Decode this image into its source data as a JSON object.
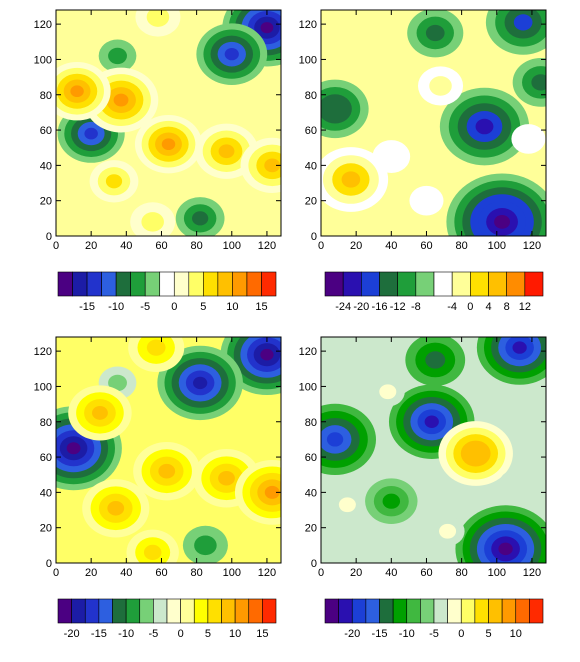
{
  "chart_data": [
    {
      "type": "heatmap",
      "title": "",
      "xlabel": "",
      "ylabel": "",
      "xlim": [
        0,
        128
      ],
      "ylim": [
        0,
        128
      ],
      "xticks": [
        "0",
        "20",
        "40",
        "60",
        "80",
        "100",
        "120"
      ],
      "yticks": [
        "0",
        "20",
        "40",
        "60",
        "80",
        "100",
        "120"
      ],
      "background": "#ffff99",
      "blobs": [
        {
          "x": 120,
          "y": 118,
          "level": -18
        },
        {
          "x": 100,
          "y": 103,
          "level": -13
        },
        {
          "x": 20,
          "y": 58,
          "level": -12
        },
        {
          "x": 82,
          "y": 10,
          "level": -7
        },
        {
          "x": 35,
          "y": 102,
          "level": -4
        },
        {
          "x": 37,
          "y": 77,
          "level": 14
        },
        {
          "x": 12,
          "y": 82,
          "level": 12
        },
        {
          "x": 64,
          "y": 52,
          "level": 12
        },
        {
          "x": 97,
          "y": 48,
          "level": 11
        },
        {
          "x": 123,
          "y": 40,
          "level": 11
        },
        {
          "x": 33,
          "y": 31,
          "level": 7
        },
        {
          "x": 58,
          "y": 124,
          "level": 6
        },
        {
          "x": 55,
          "y": 8,
          "level": 6
        }
      ],
      "colorbar": {
        "labels": [
          "-15",
          "-10",
          "-5",
          "0",
          "5",
          "10",
          "15"
        ],
        "colors": [
          "#4b0082",
          "#1c1ca6",
          "#2233cc",
          "#2d5fe0",
          "#1e6e3c",
          "#1f9e3a",
          "#77d077",
          "#ffffff",
          "#ffffcc",
          "#ffff66",
          "#ffe000",
          "#ffc000",
          "#ff9a00",
          "#ff6a00",
          "#ff2a00"
        ]
      }
    },
    {
      "type": "heatmap",
      "title": "",
      "xlabel": "",
      "ylabel": "",
      "xlim": [
        0,
        128
      ],
      "ylim": [
        0,
        128
      ],
      "xticks": [
        "0",
        "20",
        "40",
        "60",
        "80",
        "100",
        "120"
      ],
      "yticks": [
        "0",
        "20",
        "40",
        "60",
        "80",
        "100",
        "120"
      ],
      "background": "#ffff99",
      "blobs": [
        {
          "x": 103,
          "y": 8,
          "level": -24
        },
        {
          "x": 93,
          "y": 62,
          "level": -18
        },
        {
          "x": 115,
          "y": 121,
          "level": -14
        },
        {
          "x": 8,
          "y": 72,
          "level": -12
        },
        {
          "x": 125,
          "y": 87,
          "level": -9
        },
        {
          "x": 65,
          "y": 115,
          "level": -9
        },
        {
          "x": 17,
          "y": 32,
          "level": 14
        },
        {
          "x": 68,
          "y": 85,
          "level": 6
        },
        {
          "x": 40,
          "y": 45,
          "level": 4
        },
        {
          "x": 118,
          "y": 55,
          "level": 3
        },
        {
          "x": 60,
          "y": 20,
          "level": 3
        }
      ],
      "colorbar": {
        "labels": [
          "-24",
          "-20",
          "-16",
          "-12",
          "-8",
          "-4",
          "0",
          "4",
          "8",
          "12"
        ],
        "colors": [
          "#4b0082",
          "#2a10b0",
          "#1c3fd6",
          "#1e6e3c",
          "#1f9e3a",
          "#77d077",
          "#ffffff",
          "#ffff99",
          "#ffe000",
          "#ffc000",
          "#ff8c00",
          "#ff1a00"
        ]
      }
    },
    {
      "type": "heatmap",
      "title": "",
      "xlabel": "",
      "ylabel": "",
      "xlim": [
        0,
        128
      ],
      "ylim": [
        0,
        128
      ],
      "xticks": [
        "0",
        "20",
        "40",
        "60",
        "80",
        "100",
        "120"
      ],
      "yticks": [
        "0",
        "20",
        "40",
        "60",
        "80",
        "100",
        "120"
      ],
      "background": "#ffff66",
      "blobs": [
        {
          "x": 10,
          "y": 65,
          "level": -20
        },
        {
          "x": 120,
          "y": 118,
          "level": -19
        },
        {
          "x": 82,
          "y": 102,
          "level": -17
        },
        {
          "x": 85,
          "y": 10,
          "level": -6
        },
        {
          "x": 35,
          "y": 102,
          "level": -4
        },
        {
          "x": 63,
          "y": 52,
          "level": 12
        },
        {
          "x": 97,
          "y": 48,
          "level": 12
        },
        {
          "x": 123,
          "y": 40,
          "level": 14
        },
        {
          "x": 34,
          "y": 31,
          "level": 12
        },
        {
          "x": 25,
          "y": 85,
          "level": 11
        },
        {
          "x": 57,
          "y": 122,
          "level": 9
        },
        {
          "x": 55,
          "y": 6,
          "level": 8
        }
      ],
      "colorbar": {
        "labels": [
          "-20",
          "-15",
          "-10",
          "-5",
          "0",
          "5",
          "10",
          "15"
        ],
        "colors": [
          "#4b0082",
          "#1c1ca6",
          "#2233cc",
          "#2d5fe0",
          "#1e6e3c",
          "#1f9e3a",
          "#77d077",
          "#cce8cc",
          "#ffffcc",
          "#ffff99",
          "#ffff00",
          "#ffe000",
          "#ffc000",
          "#ff9a00",
          "#ff6a00",
          "#ff2a00"
        ]
      }
    },
    {
      "type": "heatmap",
      "title": "",
      "xlabel": "",
      "ylabel": "",
      "xlim": [
        0,
        128
      ],
      "ylim": [
        0,
        128
      ],
      "xticks": [
        "0",
        "20",
        "40",
        "60",
        "80",
        "100",
        "120"
      ],
      "yticks": [
        "0",
        "20",
        "40",
        "60",
        "80",
        "100",
        "120"
      ],
      "background": "#cce8cc",
      "blobs": [
        {
          "x": 105,
          "y": 8,
          "level": -21
        },
        {
          "x": 113,
          "y": 122,
          "level": -17
        },
        {
          "x": 63,
          "y": 80,
          "level": -17
        },
        {
          "x": 8,
          "y": 70,
          "level": -16
        },
        {
          "x": 65,
          "y": 115,
          "level": -10
        },
        {
          "x": 40,
          "y": 35,
          "level": -8
        },
        {
          "x": 88,
          "y": 62,
          "level": 14
        },
        {
          "x": 38,
          "y": 97,
          "level": 3
        },
        {
          "x": 15,
          "y": 33,
          "level": 3
        },
        {
          "x": 72,
          "y": 18,
          "level": 3
        },
        {
          "x": 110,
          "y": 45,
          "level": 2
        }
      ],
      "colorbar": {
        "labels": [
          "-20",
          "-15",
          "-10",
          "-5",
          "0",
          "5",
          "10"
        ],
        "colors": [
          "#4b0082",
          "#2a10b0",
          "#1c3fd6",
          "#2d5fe0",
          "#1e6e3c",
          "#00a000",
          "#40b840",
          "#77d077",
          "#cce8cc",
          "#ffffcc",
          "#ffff66",
          "#ffe000",
          "#ffc000",
          "#ff9a00",
          "#ff6a00",
          "#ff2a00"
        ]
      }
    }
  ]
}
